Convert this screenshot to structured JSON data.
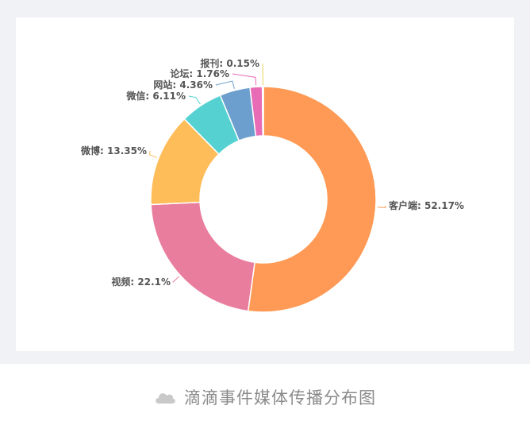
{
  "chart_data": {
    "type": "pie",
    "style": "donut",
    "categories": [
      "客户端",
      "视频",
      "微博",
      "微信",
      "网站",
      "论坛",
      "报刊"
    ],
    "values": [
      52.17,
      22.1,
      13.35,
      6.11,
      4.36,
      1.76,
      0.15
    ],
    "labels": [
      "客户端: 52.17%",
      "视频: 22.1%",
      "微博: 13.35%",
      "微信: 6.11%",
      "网站: 4.36%",
      "论坛: 1.76%",
      "报刊: 0.15%"
    ],
    "colors": [
      "#fe9a55",
      "#e97d9d",
      "#febd59",
      "#55d1d1",
      "#6c9fcd",
      "#e76bb5",
      "#e7d35a"
    ],
    "legend": "none",
    "grid": false
  },
  "caption": {
    "icon": "cloud-icon",
    "text": "滴滴事件媒体传播分布图"
  }
}
